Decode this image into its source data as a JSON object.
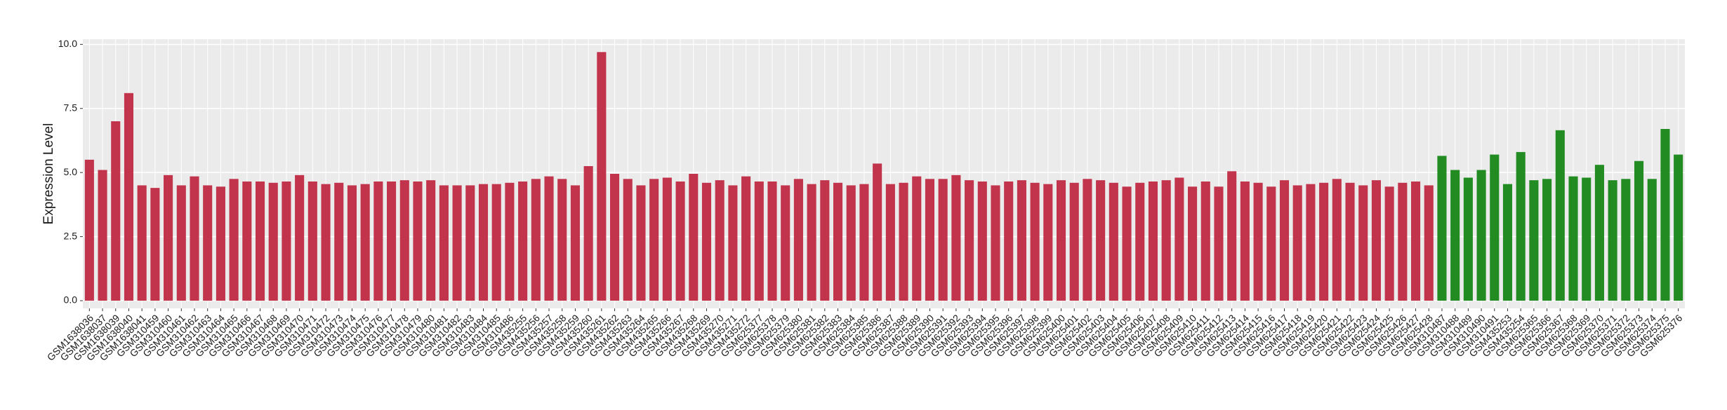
{
  "chart_data": {
    "type": "bar",
    "y_label": "Expression Level",
    "categories": [
      "GSM1638036",
      "GSM1638037",
      "GSM1638039",
      "GSM1638040",
      "GSM1638041",
      "GSM310459",
      "GSM310460",
      "GSM310461",
      "GSM310462",
      "GSM310463",
      "GSM310464",
      "GSM310465",
      "GSM310466",
      "GSM310467",
      "GSM310468",
      "GSM310469",
      "GSM310470",
      "GSM310471",
      "GSM310472",
      "GSM310473",
      "GSM310474",
      "GSM310475",
      "GSM310476",
      "GSM310477",
      "GSM310478",
      "GSM310479",
      "GSM310480",
      "GSM310481",
      "GSM310482",
      "GSM310483",
      "GSM310484",
      "GSM310485",
      "GSM310486",
      "GSM435255",
      "GSM435256",
      "GSM435257",
      "GSM435258",
      "GSM435259",
      "GSM435260",
      "GSM435261",
      "GSM435262",
      "GSM435263",
      "GSM435264",
      "GSM435265",
      "GSM435266",
      "GSM435267",
      "GSM435268",
      "GSM435269",
      "GSM435270",
      "GSM435271",
      "GSM435272",
      "GSM625377",
      "GSM625378",
      "GSM625379",
      "GSM625380",
      "GSM625381",
      "GSM625382",
      "GSM625383",
      "GSM625384",
      "GSM625385",
      "GSM625386",
      "GSM625387",
      "GSM625388",
      "GSM625389",
      "GSM625390",
      "GSM625391",
      "GSM625392",
      "GSM625393",
      "GSM625394",
      "GSM625395",
      "GSM625396",
      "GSM625397",
      "GSM625398",
      "GSM625399",
      "GSM625400",
      "GSM625401",
      "GSM625402",
      "GSM625403",
      "GSM625404",
      "GSM625405",
      "GSM625406",
      "GSM625407",
      "GSM625408",
      "GSM625409",
      "GSM625410",
      "GSM625411",
      "GSM625412",
      "GSM625413",
      "GSM625414",
      "GSM625415",
      "GSM625416",
      "GSM625417",
      "GSM625418",
      "GSM625419",
      "GSM625420",
      "GSM625421",
      "GSM625422",
      "GSM625423",
      "GSM625424",
      "GSM625425",
      "GSM625426",
      "GSM625427",
      "GSM625428",
      "GSM310487",
      "GSM310488",
      "GSM310489",
      "GSM310490",
      "GSM310491",
      "GSM435253",
      "GSM435254",
      "GSM625365",
      "GSM625366",
      "GSM625367",
      "GSM625368",
      "GSM625369",
      "GSM625370",
      "GSM625371",
      "GSM625372",
      "GSM625373",
      "GSM625374",
      "GSM625375",
      "GSM625376"
    ],
    "values": [
      5.5,
      5.1,
      7.0,
      8.1,
      4.5,
      4.4,
      4.9,
      4.5,
      4.85,
      4.5,
      4.45,
      4.75,
      4.65,
      4.65,
      4.6,
      4.65,
      4.9,
      4.65,
      4.55,
      4.6,
      4.5,
      4.55,
      4.65,
      4.65,
      4.7,
      4.65,
      4.7,
      4.5,
      4.5,
      4.5,
      4.55,
      4.55,
      4.6,
      4.65,
      4.75,
      4.85,
      4.75,
      4.5,
      5.25,
      9.7,
      4.95,
      4.75,
      4.5,
      4.75,
      4.8,
      4.65,
      4.95,
      4.6,
      4.7,
      4.5,
      4.85,
      4.65,
      4.65,
      4.5,
      4.75,
      4.55,
      4.7,
      4.6,
      4.5,
      4.55,
      5.35,
      4.55,
      4.6,
      4.85,
      4.75,
      4.75,
      4.9,
      4.7,
      4.65,
      4.5,
      4.65,
      4.7,
      4.6,
      4.55,
      4.7,
      4.6,
      4.75,
      4.7,
      4.6,
      4.45,
      4.6,
      4.65,
      4.7,
      4.8,
      4.45,
      4.65,
      4.45,
      5.05,
      4.65,
      4.6,
      4.45,
      4.7,
      4.5,
      4.55,
      4.6,
      4.75,
      4.6,
      4.5,
      4.7,
      4.45,
      4.6,
      4.65,
      4.5,
      5.65,
      5.1,
      4.8,
      5.1,
      5.7,
      4.55,
      5.8,
      4.7,
      4.75,
      6.65,
      4.85,
      4.8,
      5.3,
      4.7,
      4.75,
      5.45,
      4.75,
      6.7,
      5.7
    ],
    "colors": [
      "#c1344b",
      "#c1344b",
      "#c1344b",
      "#c1344b",
      "#c1344b",
      "#c1344b",
      "#c1344b",
      "#c1344b",
      "#c1344b",
      "#c1344b",
      "#c1344b",
      "#c1344b",
      "#c1344b",
      "#c1344b",
      "#c1344b",
      "#c1344b",
      "#c1344b",
      "#c1344b",
      "#c1344b",
      "#c1344b",
      "#c1344b",
      "#c1344b",
      "#c1344b",
      "#c1344b",
      "#c1344b",
      "#c1344b",
      "#c1344b",
      "#c1344b",
      "#c1344b",
      "#c1344b",
      "#c1344b",
      "#c1344b",
      "#c1344b",
      "#c1344b",
      "#c1344b",
      "#c1344b",
      "#c1344b",
      "#c1344b",
      "#c1344b",
      "#c1344b",
      "#c1344b",
      "#c1344b",
      "#c1344b",
      "#c1344b",
      "#c1344b",
      "#c1344b",
      "#c1344b",
      "#c1344b",
      "#c1344b",
      "#c1344b",
      "#c1344b",
      "#c1344b",
      "#c1344b",
      "#c1344b",
      "#c1344b",
      "#c1344b",
      "#c1344b",
      "#c1344b",
      "#c1344b",
      "#c1344b",
      "#c1344b",
      "#c1344b",
      "#c1344b",
      "#c1344b",
      "#c1344b",
      "#c1344b",
      "#c1344b",
      "#c1344b",
      "#c1344b",
      "#c1344b",
      "#c1344b",
      "#c1344b",
      "#c1344b",
      "#c1344b",
      "#c1344b",
      "#c1344b",
      "#c1344b",
      "#c1344b",
      "#c1344b",
      "#c1344b",
      "#c1344b",
      "#c1344b",
      "#c1344b",
      "#c1344b",
      "#c1344b",
      "#c1344b",
      "#c1344b",
      "#c1344b",
      "#c1344b",
      "#c1344b",
      "#c1344b",
      "#c1344b",
      "#c1344b",
      "#c1344b",
      "#c1344b",
      "#c1344b",
      "#c1344b",
      "#c1344b",
      "#c1344b",
      "#c1344b",
      "#c1344b",
      "#c1344b",
      "#c1344b",
      "#228b22",
      "#228b22",
      "#228b22",
      "#228b22",
      "#228b22",
      "#228b22",
      "#228b22",
      "#228b22",
      "#228b22",
      "#228b22",
      "#228b22",
      "#228b22",
      "#228b22",
      "#228b22",
      "#228b22",
      "#228b22",
      "#228b22",
      "#228b22",
      "#228b22"
    ],
    "ylim": [
      -0.3,
      10.2
    ],
    "yticks": [
      {
        "value": 0,
        "label": "0.0"
      },
      2.5,
      {
        "value": 5,
        "label": "5.0"
      },
      7.5,
      {
        "value": 10,
        "label": "10.0"
      }
    ],
    "grid": true
  }
}
